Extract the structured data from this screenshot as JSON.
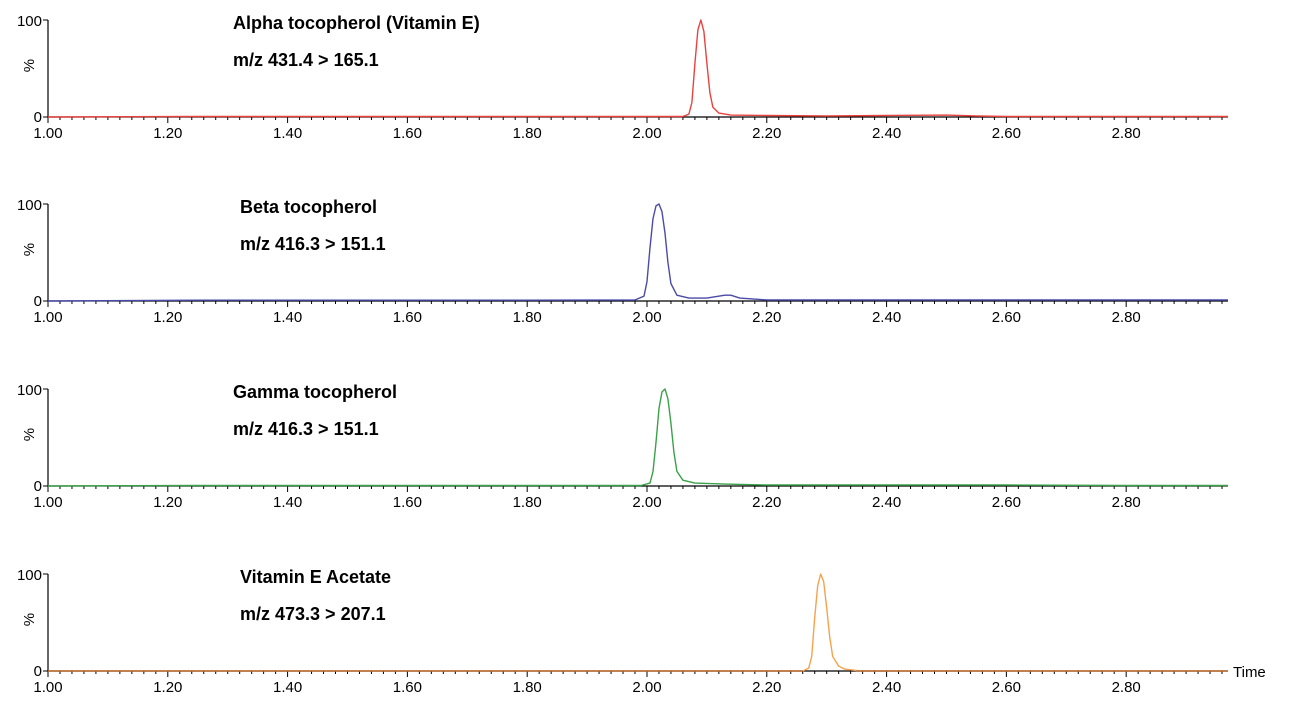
{
  "chart_data": [
    {
      "type": "line",
      "title": "Alpha tocopherol (Vitamin E)",
      "subtitle": "m/z 431.4 > 165.1",
      "ylabel": "%",
      "xlabel": "",
      "xlim": [
        1.0,
        2.97
      ],
      "ylim": [
        0,
        100
      ],
      "x_ticks": [
        "1.00",
        "1.20",
        "1.40",
        "1.60",
        "1.80",
        "2.00",
        "2.20",
        "2.40",
        "2.60",
        "2.80"
      ],
      "y_ticks": [
        "0",
        "100"
      ],
      "series": [
        {
          "color": "#e8433f",
          "x": [
            1.0,
            1.25,
            1.5,
            1.8,
            2.0,
            2.06,
            2.07,
            2.075,
            2.08,
            2.085,
            2.09,
            2.095,
            2.1,
            2.105,
            2.11,
            2.12,
            2.14,
            2.2,
            2.3,
            2.4,
            2.5,
            2.55,
            2.6,
            2.8,
            2.97
          ],
          "y": [
            0,
            0.5,
            0.5,
            0.5,
            0.5,
            0.5,
            3,
            15,
            55,
            90,
            100,
            88,
            55,
            25,
            10,
            4,
            2,
            1.5,
            1,
            1.5,
            2,
            1,
            0.5,
            0.5,
            0.5
          ]
        }
      ]
    },
    {
      "type": "line",
      "title": "Beta tocopherol",
      "subtitle": "m/z 416.3 > 151.1",
      "ylabel": "%",
      "xlabel": "",
      "xlim": [
        1.0,
        2.97
      ],
      "ylim": [
        0,
        100
      ],
      "x_ticks": [
        "1.00",
        "1.20",
        "1.40",
        "1.60",
        "1.80",
        "2.00",
        "2.20",
        "2.40",
        "2.60",
        "2.80"
      ],
      "y_ticks": [
        "0",
        "100"
      ],
      "series": [
        {
          "color": "#4a4aa8",
          "x": [
            1.0,
            1.25,
            1.5,
            1.8,
            1.98,
            1.995,
            2.0,
            2.005,
            2.01,
            2.015,
            2.02,
            2.025,
            2.03,
            2.035,
            2.04,
            2.05,
            2.07,
            2.1,
            2.13,
            2.14,
            2.155,
            2.2,
            2.4,
            2.6,
            2.8,
            2.97
          ],
          "y": [
            0,
            0.8,
            0.8,
            0.8,
            1,
            5,
            20,
            55,
            85,
            98,
            100,
            92,
            70,
            40,
            18,
            6,
            3,
            3,
            6,
            6,
            3,
            1,
            1,
            1,
            1,
            1
          ]
        }
      ]
    },
    {
      "type": "line",
      "title": "Gamma tocopherol",
      "subtitle": "m/z 416.3 > 151.1",
      "ylabel": "%",
      "xlabel": "",
      "xlim": [
        1.0,
        2.97
      ],
      "ylim": [
        0,
        100
      ],
      "x_ticks": [
        "1.00",
        "1.20",
        "1.40",
        "1.60",
        "1.80",
        "2.00",
        "2.20",
        "2.40",
        "2.60",
        "2.80"
      ],
      "y_ticks": [
        "0",
        "100"
      ],
      "series": [
        {
          "color": "#3aa14a",
          "x": [
            1.0,
            1.25,
            1.5,
            1.8,
            1.99,
            2.005,
            2.01,
            2.015,
            2.02,
            2.025,
            2.03,
            2.035,
            2.04,
            2.045,
            2.05,
            2.06,
            2.08,
            2.13,
            2.2,
            2.4,
            2.6,
            2.8,
            2.97
          ],
          "y": [
            0,
            0.5,
            0.5,
            0.5,
            0.5,
            3,
            15,
            45,
            80,
            97,
            100,
            90,
            65,
            35,
            15,
            6,
            3,
            2,
            1,
            1,
            1,
            0.5,
            0.5
          ]
        }
      ]
    },
    {
      "type": "line",
      "title": "Vitamin E Acetate",
      "subtitle": "m/z 473.3 > 207.1",
      "ylabel": "%",
      "xlabel": "Time",
      "xlim": [
        1.0,
        2.97
      ],
      "ylim": [
        0,
        100
      ],
      "x_ticks": [
        "1.00",
        "1.20",
        "1.40",
        "1.60",
        "1.80",
        "2.00",
        "2.20",
        "2.40",
        "2.60",
        "2.80"
      ],
      "y_ticks": [
        "0",
        "100"
      ],
      "series": [
        {
          "color": "#c06d28",
          "x": [
            1.0,
            1.5,
            2.0,
            2.25,
            2.26
          ],
          "y": [
            0,
            0,
            0,
            0,
            0
          ]
        },
        {
          "color": "#f5a24e",
          "x": [
            2.26,
            2.27,
            2.275,
            2.28,
            2.285,
            2.29,
            2.295,
            2.3,
            2.305,
            2.31,
            2.32,
            2.33,
            2.35
          ],
          "y": [
            0,
            3,
            15,
            55,
            88,
            100,
            92,
            65,
            35,
            15,
            5,
            2,
            0.5
          ]
        },
        {
          "color": "#c06d28",
          "x": [
            2.35,
            2.6,
            2.97
          ],
          "y": [
            0,
            0,
            0
          ]
        }
      ]
    }
  ]
}
